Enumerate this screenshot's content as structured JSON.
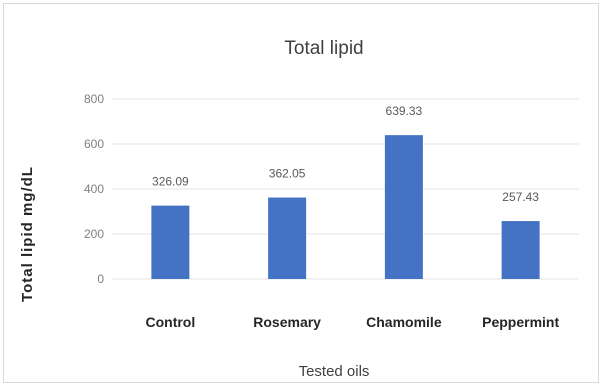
{
  "chart_data": {
    "type": "bar",
    "title": "Total lipid",
    "xlabel": "Tested oils",
    "ylabel": "Total lipid mg/dL",
    "categories": [
      "Control",
      "Rosemary",
      "Chamomile",
      "Peppermint"
    ],
    "values": [
      326.09,
      362.05,
      639.33,
      257.43
    ],
    "value_labels": [
      "326.09",
      "362.05",
      "639.33",
      "257.43"
    ],
    "yticks": [
      "0",
      "200",
      "400",
      "600",
      "800"
    ],
    "ylim": [
      0,
      800
    ],
    "grid": true,
    "legend": "none",
    "bar_color": "#4472c4",
    "grid_color": "#e6e6e6"
  }
}
